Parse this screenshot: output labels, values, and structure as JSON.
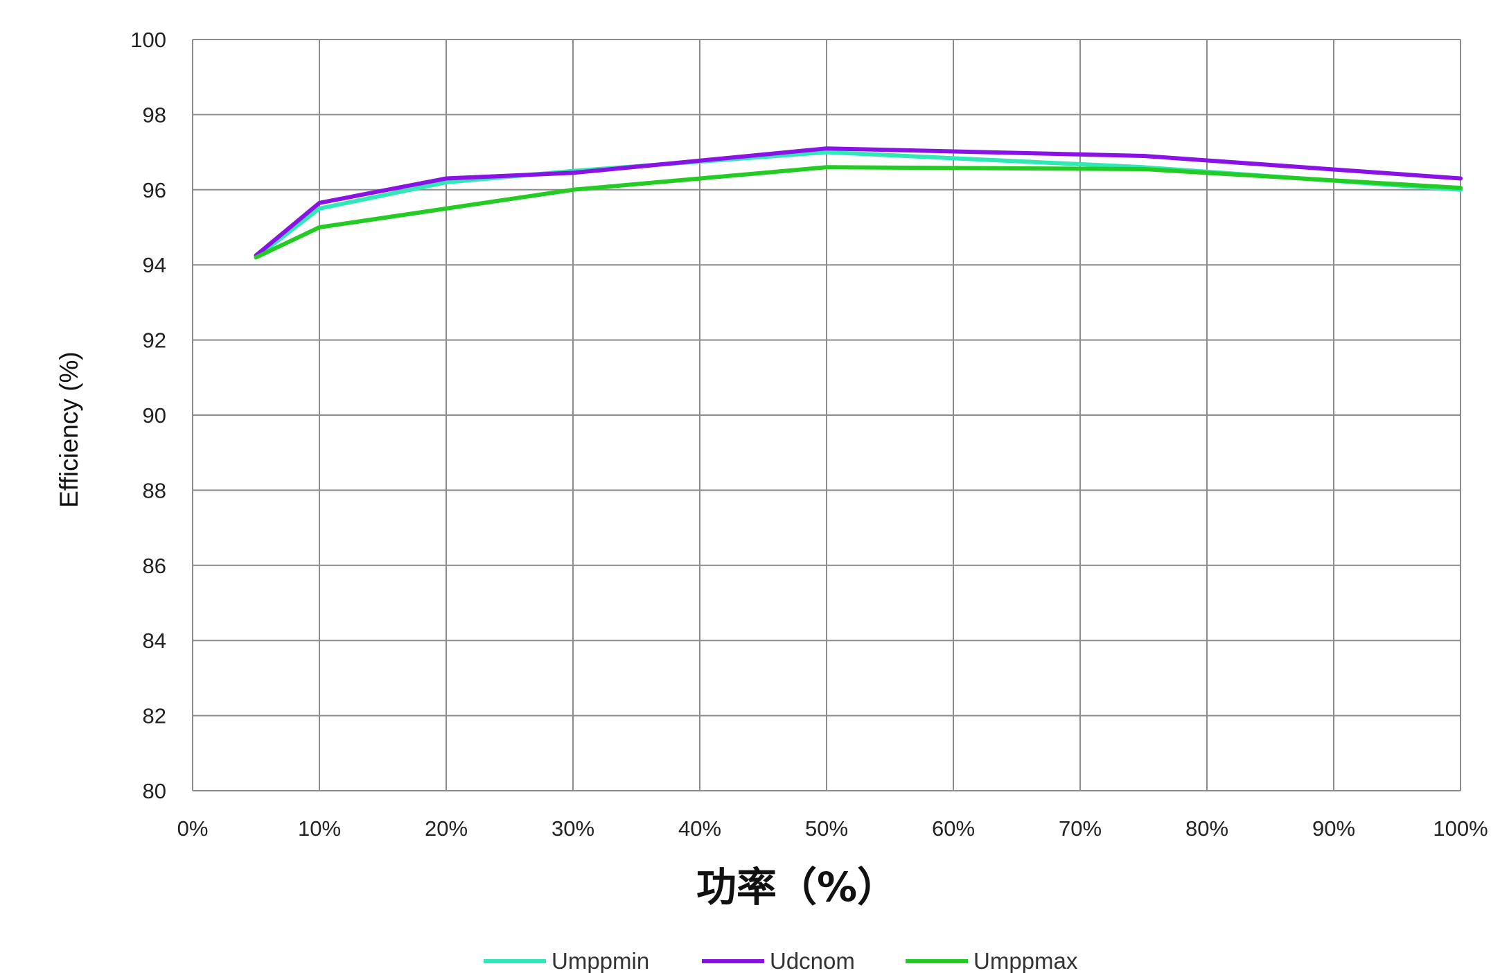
{
  "chart_data": {
    "type": "line",
    "xlabel": "功率（%）",
    "ylabel": "Efficiency (%)",
    "xlim": [
      0,
      100
    ],
    "ylim": [
      80,
      100
    ],
    "x_ticks": [
      "0%",
      "10%",
      "20%",
      "30%",
      "40%",
      "50%",
      "60%",
      "70%",
      "80%",
      "90%",
      "100%"
    ],
    "y_ticks": [
      "80",
      "82",
      "84",
      "86",
      "88",
      "90",
      "92",
      "94",
      "96",
      "98",
      "100"
    ],
    "grid": true,
    "legend_position": "bottom",
    "x": [
      5,
      10,
      20,
      30,
      50,
      75,
      100
    ],
    "series": [
      {
        "name": "Umppmin",
        "color": "#2ee8b6",
        "values": [
          94.2,
          95.5,
          96.2,
          96.5,
          97.0,
          96.6,
          96.0
        ]
      },
      {
        "name": "Udcnom",
        "color": "#8b12e6",
        "values": [
          94.25,
          95.65,
          96.3,
          96.45,
          97.1,
          96.9,
          96.3
        ]
      },
      {
        "name": "Umppmax",
        "color": "#22cc22",
        "values": [
          94.2,
          95.0,
          95.5,
          96.0,
          96.6,
          96.55,
          96.05
        ]
      }
    ]
  }
}
